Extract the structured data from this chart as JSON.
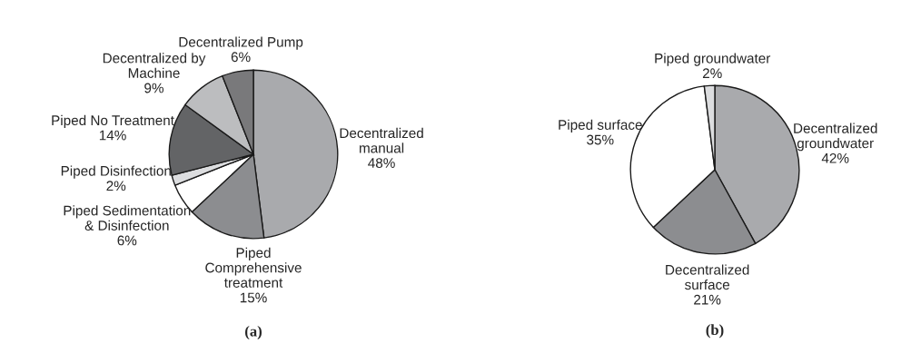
{
  "chart_data": [
    {
      "type": "pie",
      "title": "(a)",
      "categories": [
        "Decentralized\nmanual",
        "Piped\nComprehensive\ntreatment",
        "Piped Sedimentation\n& Disinfection",
        "Piped Disinfection",
        "Piped No Treatment",
        "Decentralized by\nMachine",
        "Decentralized Pump"
      ],
      "values": [
        48,
        15,
        6,
        2,
        14,
        9,
        6
      ],
      "value_labels": [
        "48%",
        "15%",
        "6%",
        "2%",
        "14%",
        "9%",
        "6%"
      ],
      "colors": [
        "#a9aaad",
        "#8c8d90",
        "#ffffff",
        "#dcdddf",
        "#636466",
        "#bcbdbf",
        "#79797b"
      ]
    },
    {
      "type": "pie",
      "title": "(b)",
      "categories": [
        "Decentralized\ngroundwater",
        "Decentralized\nsurface",
        "Piped surface",
        "Piped groundwater"
      ],
      "values": [
        42,
        21,
        35,
        2
      ],
      "value_labels": [
        "42%",
        "21%",
        "35%",
        "2%"
      ],
      "colors": [
        "#a9aaad",
        "#8c8d90",
        "#ffffff",
        "#dcdddf"
      ]
    }
  ]
}
